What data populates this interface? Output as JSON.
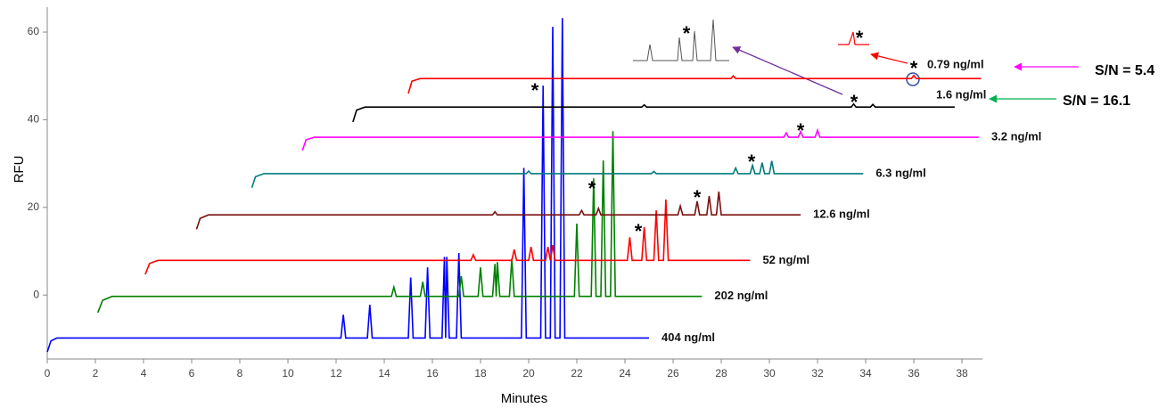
{
  "chart_data": {
    "type": "line",
    "x_label": "Minutes",
    "y_label": "RFU",
    "xlim": [
      0,
      38.85
    ],
    "ylim": [
      -14.6,
      65.7
    ],
    "xticks": [
      0,
      2,
      4,
      6,
      8,
      10,
      12,
      14,
      16,
      18,
      20,
      22,
      24,
      26,
      28,
      30,
      32,
      34,
      36,
      38
    ],
    "yticks": [
      0,
      20,
      40,
      60
    ],
    "grid": false,
    "annotations": [
      "*",
      "*",
      "*",
      "*",
      "*",
      "*",
      "*",
      "*",
      "*",
      "*",
      "S/N = 5.4",
      "S/N = 16.1"
    ],
    "series": [
      {
        "name": "404 ng/ml",
        "color": "#0000ff",
        "x": [
          0,
          0.15,
          0.4,
          12.2,
          12.3,
          12.4,
          13.3,
          13.4,
          13.5,
          15.0,
          15.1,
          15.2,
          15.7,
          15.8,
          15.9,
          16.4,
          16.5,
          16.55,
          16.6,
          16.7,
          17.0,
          17.1,
          17.2,
          19.7,
          19.8,
          19.9,
          20.5,
          20.6,
          20.7,
          20.9,
          21.0,
          21.1,
          21.3,
          21.4,
          21.5,
          25.0
        ],
        "values": [
          -13,
          -10.5,
          -9.8,
          -9.8,
          -4.5,
          -9.8,
          -9.8,
          -2.2,
          -9.8,
          -9.8,
          4,
          -9.8,
          -9.8,
          6.3,
          -9.8,
          -9.8,
          8.7,
          -9.8,
          8.7,
          -9.8,
          -9.8,
          9.6,
          -9.8,
          -9.8,
          29,
          -9.8,
          -9.8,
          47.8,
          -9.8,
          -9.8,
          61.2,
          -9.8,
          -9.8,
          63.2,
          -9.8,
          -9.8
        ]
      },
      {
        "name": "202 ng/ml",
        "color": "#008000",
        "x": [
          2.1,
          2.3,
          2.7,
          14.3,
          14.4,
          14.5,
          15.5,
          15.6,
          15.7,
          17.1,
          17.2,
          17.3,
          17.9,
          18.0,
          18.1,
          18.5,
          18.6,
          18.65,
          18.7,
          18.8,
          19.2,
          19.3,
          19.4,
          21.9,
          22.0,
          22.1,
          22.6,
          22.7,
          22.8,
          23.0,
          23.1,
          23.2,
          23.4,
          23.5,
          23.6,
          27.2
        ],
        "values": [
          -4,
          -1.2,
          -0.3,
          -0.3,
          1.8,
          -0.3,
          -0.3,
          3,
          -0.3,
          -0.3,
          4.3,
          -0.3,
          -0.3,
          6.3,
          -0.3,
          -0.3,
          7.1,
          -0.3,
          7.5,
          -0.3,
          -0.3,
          8.3,
          -0.3,
          -0.3,
          16.3,
          -0.3,
          -0.3,
          26.6,
          -0.3,
          -0.3,
          30.7,
          -0.3,
          -0.3,
          37.4,
          -0.3,
          -0.3
        ]
      },
      {
        "name": "52 ng/ml",
        "color": "#ff0000",
        "x": [
          4.07,
          4.25,
          4.6,
          17.6,
          17.7,
          17.8,
          19.3,
          19.4,
          19.5,
          20.0,
          20.1,
          20.2,
          20.7,
          20.8,
          20.9,
          21.0,
          21.1,
          24.1,
          24.2,
          24.3,
          24.7,
          24.8,
          24.9,
          25.2,
          25.3,
          25.4,
          25.6,
          25.7,
          25.8,
          29.2
        ],
        "values": [
          4.7,
          7.2,
          7.9,
          7.9,
          9.2,
          7.9,
          7.9,
          10.4,
          7.9,
          7.9,
          11,
          7.9,
          7.9,
          11,
          7.9,
          11.4,
          7.9,
          7.9,
          13.2,
          7.9,
          7.9,
          15.5,
          7.9,
          7.9,
          19.3,
          7.9,
          7.9,
          21.8,
          7.9,
          7.9
        ]
      },
      {
        "name": "12.6 ng/ml",
        "color": "#7b1010",
        "x": [
          6.2,
          6.35,
          6.7,
          18.5,
          18.6,
          18.7,
          22.1,
          22.2,
          22.3,
          22.8,
          22.9,
          23.0,
          26.2,
          26.3,
          26.4,
          26.9,
          27.0,
          27.1,
          27.4,
          27.5,
          27.6,
          27.8,
          27.9,
          28.0,
          31.3
        ],
        "values": [
          15,
          17.5,
          18.3,
          18.3,
          19,
          18.3,
          18.3,
          19.3,
          18.3,
          18.3,
          19.8,
          18.3,
          18.3,
          20.3,
          18.3,
          18.3,
          21.4,
          18.3,
          18.3,
          22.6,
          18.3,
          18.3,
          23.6,
          18.3,
          18.3
        ]
      },
      {
        "name": "6.3 ng/ml",
        "color": "#007b7b",
        "x": [
          8.5,
          8.65,
          9.0,
          19.9,
          20.0,
          20.1,
          25.1,
          25.2,
          25.3,
          28.5,
          28.6,
          28.7,
          29.2,
          29.3,
          29.4,
          29.6,
          29.7,
          29.8,
          30.0,
          30.1,
          30.2,
          33.9
        ],
        "values": [
          24.5,
          27,
          27.7,
          27.7,
          28.3,
          27.7,
          27.7,
          28.2,
          27.7,
          27.7,
          29,
          27.7,
          27.7,
          29.6,
          27.7,
          27.7,
          30.2,
          27.7,
          27.7,
          30.6,
          27.7,
          27.7
        ]
      },
      {
        "name": "3.2 ng/ml",
        "color": "#ff00ff",
        "x": [
          10.6,
          10.75,
          11.1,
          30.6,
          30.7,
          30.8,
          31.2,
          31.3,
          31.4,
          31.9,
          32.0,
          32.1,
          38.7
        ],
        "values": [
          33,
          35.4,
          36,
          36,
          37,
          36,
          36,
          37.3,
          36,
          36,
          37.6,
          36,
          36
        ]
      },
      {
        "name": "1.6 ng/ml",
        "color": "#000000",
        "x": [
          12.7,
          12.85,
          13.2,
          24.7,
          24.8,
          24.9,
          33.4,
          33.5,
          33.6,
          34.2,
          34.3,
          34.4,
          37.7
        ],
        "values": [
          39.5,
          42.2,
          42.9,
          42.9,
          43.4,
          42.9,
          42.9,
          43.6,
          42.9,
          42.9,
          43.5,
          42.9,
          42.9
        ]
      },
      {
        "name": "0.79 ng/ml",
        "color": "#ff0000",
        "x": [
          15.0,
          15.15,
          15.5,
          28.4,
          28.5,
          28.6,
          35.9,
          36.0,
          36.1,
          38.8
        ],
        "values": [
          46,
          48.8,
          49.4,
          49.4,
          50,
          49.4,
          49.4,
          50.1,
          49.4,
          49.4
        ]
      }
    ]
  }
}
